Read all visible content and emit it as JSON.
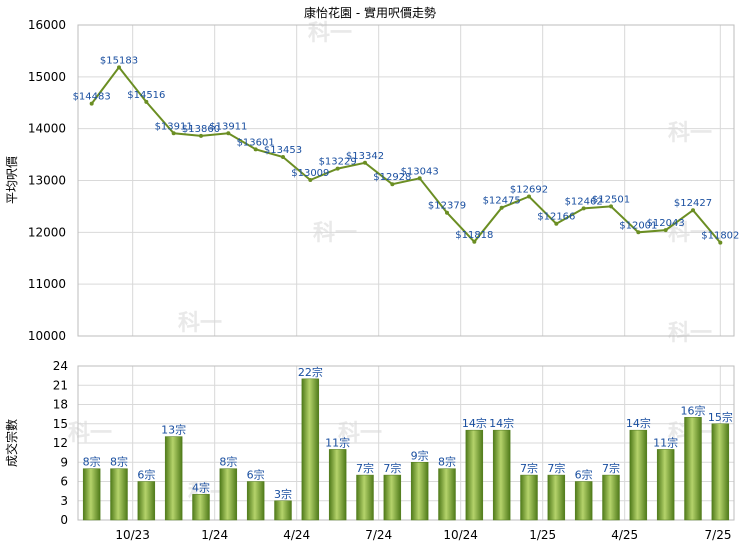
{
  "title": "康怡花園 - 實用呎價走勢",
  "watermark": "科一",
  "colors": {
    "line": "#6b8e23",
    "bar_dark": "#4f7a1a",
    "bar_light": "#b5d36b",
    "label": "#1a4fa0",
    "grid": "#d9d9d9"
  },
  "chart_data": [
    {
      "type": "line",
      "ylabel": "平均呎價",
      "ylim": [
        10000,
        16000
      ],
      "yticks": [
        "16000",
        "15000",
        "14000",
        "13000",
        "12000",
        "11000",
        "10000"
      ],
      "grid": true,
      "values": [
        14483,
        15183,
        14516,
        13911,
        13860,
        13911,
        13601,
        13453,
        13009,
        13229,
        13342,
        12928,
        13043,
        12379,
        11818,
        12475,
        12692,
        12166,
        12462,
        12501,
        12001,
        12043,
        12427,
        11802
      ],
      "labels": [
        "$14483",
        "$15183",
        "$14516",
        "$13911",
        "$13860",
        "$13911",
        "$13601",
        "$13453",
        "$13009",
        "$13229",
        "$13342",
        "$12928",
        "$13043",
        "$12379",
        "$11818",
        "$12475",
        "$12692",
        "$12166",
        "$12462",
        "$12501",
        "$12001",
        "$12043",
        "$12427",
        "$11802"
      ]
    },
    {
      "type": "bar",
      "ylabel": "成交宗數",
      "ylim": [
        0,
        24
      ],
      "yticks": [
        "24",
        "21",
        "18",
        "15",
        "12",
        "9",
        "6",
        "3",
        "0"
      ],
      "grid": true,
      "values": [
        8,
        8,
        6,
        13,
        4,
        8,
        6,
        3,
        22,
        11,
        7,
        7,
        9,
        8,
        14,
        14,
        7,
        7,
        6,
        7,
        14,
        11,
        16,
        15
      ],
      "labels": [
        "8宗",
        "8宗",
        "6宗",
        "13宗",
        "4宗",
        "8宗",
        "6宗",
        "3宗",
        "22宗",
        "11宗",
        "7宗",
        "7宗",
        "9宗",
        "8宗",
        "14宗",
        "14宗",
        "7宗",
        "7宗",
        "6宗",
        "7宗",
        "14宗",
        "11宗",
        "16宗",
        "15宗"
      ],
      "categories": [
        "10/23",
        "1/24",
        "4/24",
        "7/24",
        "10/24",
        "1/25",
        "4/25",
        "7/25"
      ]
    }
  ]
}
